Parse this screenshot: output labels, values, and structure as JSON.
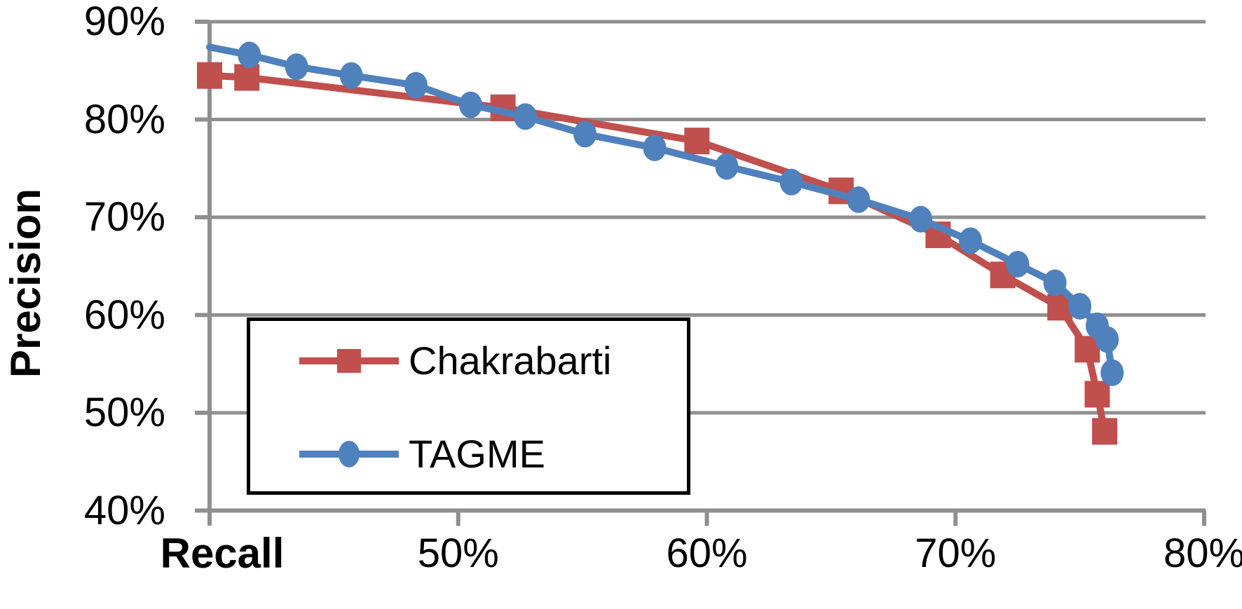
{
  "chart_data": {
    "type": "line",
    "title": "",
    "xlabel": "Recall",
    "ylabel": "Precision",
    "xlim": [
      40,
      80
    ],
    "ylim": [
      40,
      90
    ],
    "grid": "horizontal",
    "legend_position": "inside-bottom-left",
    "x_ticks": [
      {
        "value": 50,
        "label": "50%"
      },
      {
        "value": 60,
        "label": "60%"
      },
      {
        "value": 70,
        "label": "70%"
      },
      {
        "value": 80,
        "label": "80%"
      }
    ],
    "y_ticks": [
      {
        "value": 40,
        "label": "40%"
      },
      {
        "value": 50,
        "label": "50%"
      },
      {
        "value": 60,
        "label": "60%"
      },
      {
        "value": 70,
        "label": "70%"
      },
      {
        "value": 80,
        "label": "80%"
      },
      {
        "value": 90,
        "label": "90%"
      }
    ],
    "series": [
      {
        "name": "Chakrabarti",
        "color": "#C0504D",
        "marker": "square",
        "points": [
          [
            40.0,
            84.5
          ],
          [
            41.5,
            84.3
          ],
          [
            51.8,
            81.2
          ],
          [
            59.6,
            77.8
          ],
          [
            65.4,
            72.7
          ],
          [
            69.3,
            68.2
          ],
          [
            71.9,
            64.1
          ],
          [
            74.2,
            60.8
          ],
          [
            75.3,
            56.5
          ],
          [
            75.7,
            51.9
          ],
          [
            76.0,
            48.1
          ]
        ]
      },
      {
        "name": "TAGME",
        "color": "#4F81BD",
        "marker": "circle",
        "line_start": [
          40.0,
          87.4
        ],
        "points": [
          [
            41.6,
            86.6
          ],
          [
            43.5,
            85.4
          ],
          [
            45.7,
            84.5
          ],
          [
            48.3,
            83.5
          ],
          [
            50.5,
            81.5
          ],
          [
            52.7,
            80.3
          ],
          [
            55.1,
            78.5
          ],
          [
            57.9,
            77.1
          ],
          [
            60.8,
            75.2
          ],
          [
            63.4,
            73.6
          ],
          [
            66.1,
            71.8
          ],
          [
            68.6,
            69.8
          ],
          [
            70.6,
            67.6
          ],
          [
            72.5,
            65.2
          ],
          [
            74.0,
            63.3
          ],
          [
            75.0,
            60.9
          ],
          [
            75.7,
            58.9
          ],
          [
            76.1,
            57.5
          ],
          [
            76.3,
            54.1
          ]
        ]
      }
    ]
  },
  "axis_titles": {
    "x": "Recall",
    "y": "Precision"
  },
  "legend": {
    "items": [
      "Chakrabarti",
      "TAGME"
    ]
  },
  "style": {
    "gridline_color": "#8F8F8F",
    "axis_color": "#8F8F8F",
    "text_color": "#000000",
    "background": "#FFFFFF",
    "legend_border_color": "#000000"
  }
}
